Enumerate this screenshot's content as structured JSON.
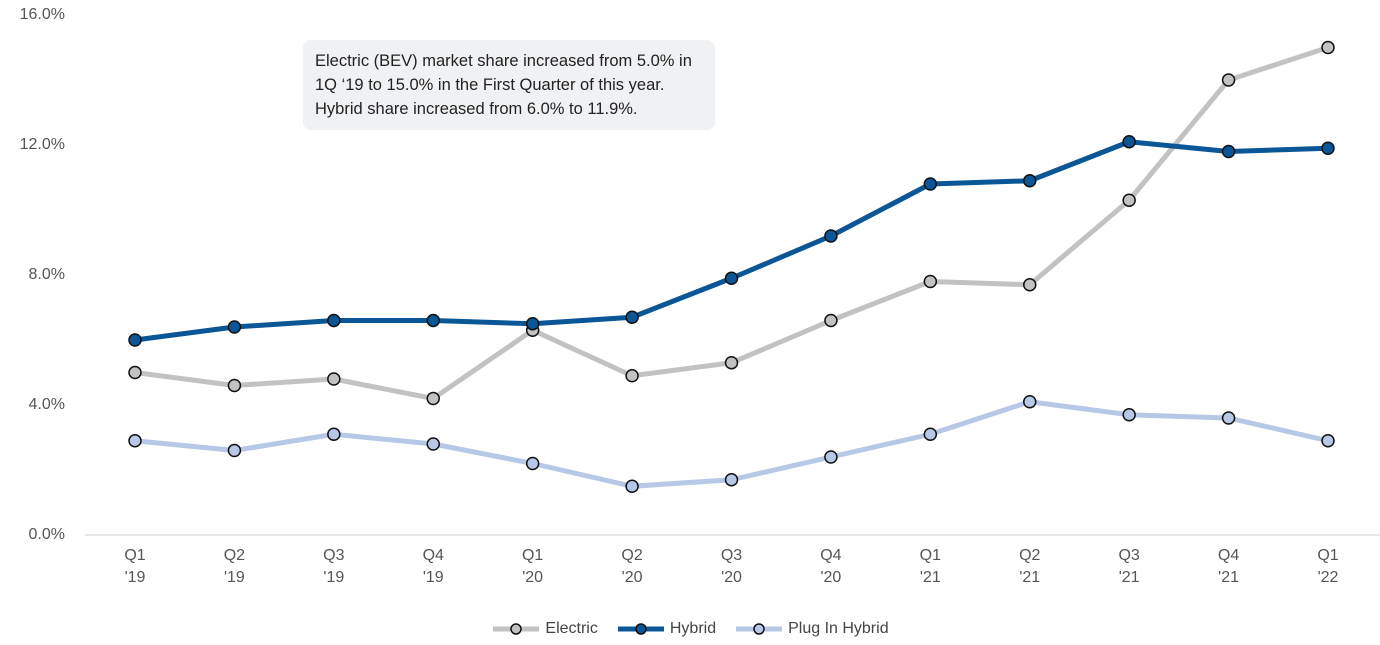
{
  "chart_data": {
    "type": "line",
    "annotation": "Electric (BEV) market share increased from 5.0% in 1Q ‘19 to 15.0% in the First Quarter of this year. Hybrid share increased from 6.0% to 11.9%.",
    "categories": [
      "Q1 '19",
      "Q2 '19",
      "Q3 '19",
      "Q4 '19",
      "Q1 '20",
      "Q2 '20",
      "Q3 '20",
      "Q4 '20",
      "Q1 '21",
      "Q2 '21",
      "Q3 '21",
      "Q4 '21",
      "Q1 '22"
    ],
    "series": [
      {
        "name": "Electric",
        "color": "#c2c2c2",
        "values": [
          5.0,
          4.6,
          4.8,
          4.2,
          6.3,
          4.9,
          5.3,
          6.6,
          7.8,
          7.7,
          10.3,
          14.0,
          15.0
        ]
      },
      {
        "name": "Hybrid",
        "color": "#0b5696",
        "values": [
          6.0,
          6.4,
          6.6,
          6.6,
          6.5,
          6.7,
          7.9,
          9.2,
          10.8,
          10.9,
          12.1,
          11.8,
          11.9
        ]
      },
      {
        "name": "Plug In Hybrid",
        "color": "#b7c7e6",
        "values": [
          2.9,
          2.6,
          3.1,
          2.8,
          2.2,
          1.5,
          1.7,
          2.4,
          3.1,
          4.1,
          3.7,
          3.6,
          2.9
        ]
      }
    ],
    "ylim": [
      0,
      16
    ],
    "yticks": [
      {
        "value": 0,
        "label": "0.0%"
      },
      {
        "value": 4,
        "label": "4.0%"
      },
      {
        "value": 8,
        "label": "8.0%"
      },
      {
        "value": 12,
        "label": "12.0%"
      },
      {
        "value": 16,
        "label": "16.0%"
      }
    ],
    "grid": false,
    "legend": "bottom"
  }
}
